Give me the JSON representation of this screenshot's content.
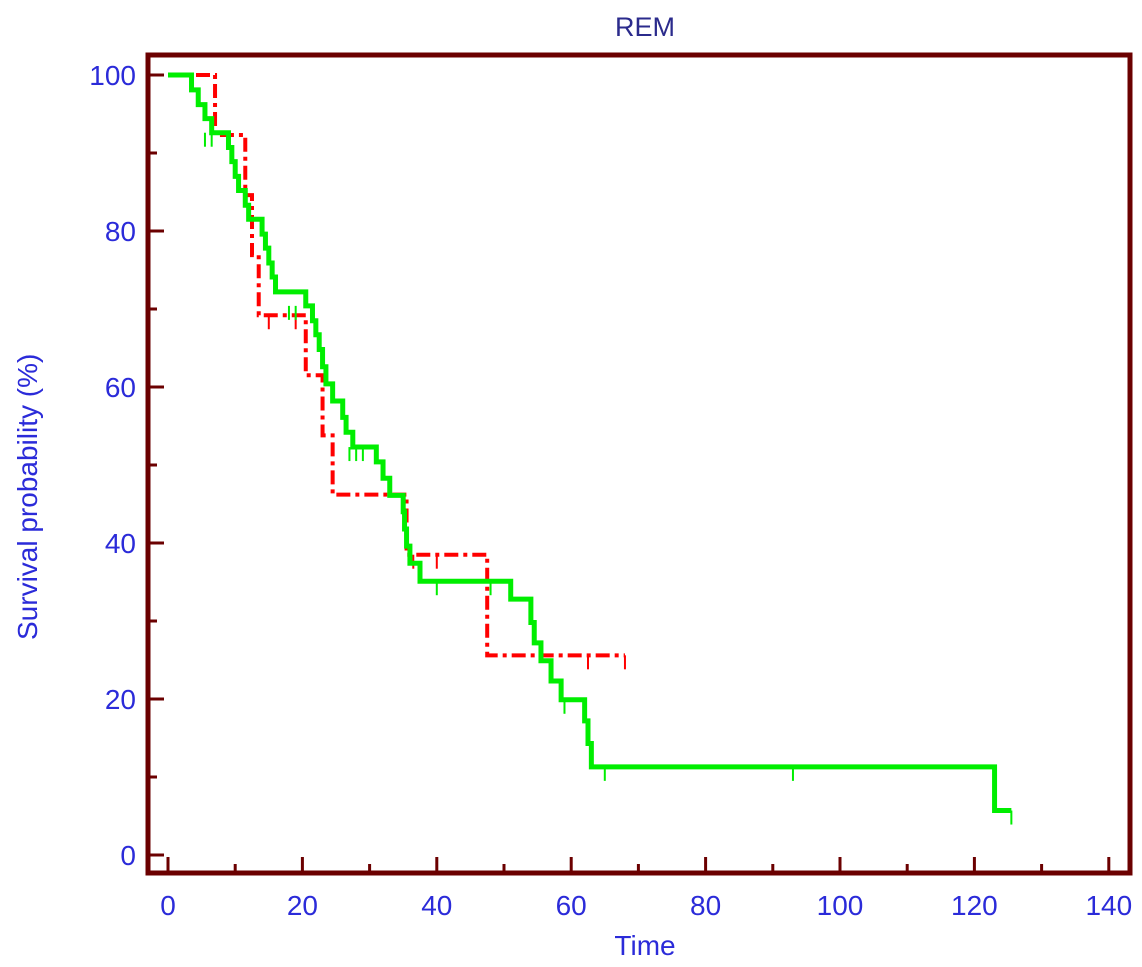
{
  "chart_data": {
    "type": "line",
    "title": "REM",
    "xlabel": "Time",
    "ylabel": "Survival probability (%)",
    "xlim": [
      0,
      140
    ],
    "ylim": [
      0,
      100
    ],
    "x_ticks": [
      "0",
      "20",
      "40",
      "60",
      "80",
      "100",
      "120",
      "140"
    ],
    "y_ticks": [
      "0",
      "20",
      "40",
      "60",
      "80",
      "100"
    ],
    "grid": false,
    "legend": "none",
    "colors": {
      "frame": "#6b0000",
      "axis_text": "#2b2bd9",
      "title_text": "#2b2b8c"
    },
    "series": [
      {
        "style": "dash-dot",
        "color": "#ff0000",
        "steps": [
          [
            0,
            100
          ],
          [
            7,
            92.3
          ],
          [
            11.5,
            84.6
          ],
          [
            12.5,
            76.9
          ],
          [
            13.5,
            69.2
          ],
          [
            20.5,
            61.5
          ],
          [
            23,
            53.8
          ],
          [
            24.5,
            46.2
          ],
          [
            35.5,
            38.5
          ],
          [
            47.5,
            25.6
          ],
          [
            68,
            25.6
          ]
        ],
        "censored": [
          [
            9,
            92.3
          ],
          [
            15,
            69.2
          ],
          [
            19,
            69.2
          ],
          [
            36.5,
            38.5
          ],
          [
            40,
            38.5
          ],
          [
            62.5,
            25.6
          ],
          [
            68,
            25.6
          ]
        ]
      },
      {
        "style": "solid",
        "color": "#00ee00",
        "steps": [
          [
            0,
            100
          ],
          [
            3.5,
            98.1
          ],
          [
            4.5,
            96.2
          ],
          [
            5.5,
            94.4
          ],
          [
            6.5,
            92.6
          ],
          [
            9,
            90.7
          ],
          [
            9.5,
            88.9
          ],
          [
            10,
            87
          ],
          [
            10.5,
            85.2
          ],
          [
            11.5,
            83.3
          ],
          [
            12,
            81.5
          ],
          [
            14,
            79.6
          ],
          [
            14.5,
            77.8
          ],
          [
            15,
            75.9
          ],
          [
            15.5,
            74.1
          ],
          [
            16,
            72.2
          ],
          [
            20.5,
            70.4
          ],
          [
            21.5,
            68.5
          ],
          [
            22,
            66.7
          ],
          [
            22.5,
            64.8
          ],
          [
            23,
            62.6
          ],
          [
            23.5,
            60.4
          ],
          [
            24.5,
            58.2
          ],
          [
            26,
            56.1
          ],
          [
            26.5,
            54.2
          ],
          [
            27.5,
            52.3
          ],
          [
            31,
            50.4
          ],
          [
            32,
            48.3
          ],
          [
            33,
            46.1
          ],
          [
            35,
            44
          ],
          [
            35.2,
            41.8
          ],
          [
            35.5,
            39.6
          ],
          [
            36,
            37.4
          ],
          [
            37.5,
            35.1
          ],
          [
            51,
            32.8
          ],
          [
            54,
            29.8
          ],
          [
            54.5,
            27.2
          ],
          [
            55.5,
            24.9
          ],
          [
            57,
            22.3
          ],
          [
            58.5,
            19.9
          ],
          [
            62,
            17.2
          ],
          [
            62.5,
            14.3
          ],
          [
            63,
            11.3
          ],
          [
            123,
            5.7
          ],
          [
            125.5,
            5.7
          ]
        ],
        "censored": [
          [
            5.5,
            92.6
          ],
          [
            6.5,
            92.6
          ],
          [
            18,
            70.4
          ],
          [
            19,
            70.4
          ],
          [
            27,
            52.3
          ],
          [
            28,
            52.3
          ],
          [
            29,
            52.3
          ],
          [
            40,
            35.1
          ],
          [
            48,
            35.1
          ],
          [
            59,
            19.9
          ],
          [
            65,
            11.3
          ],
          [
            93,
            11.3
          ],
          [
            125.5,
            5.7
          ]
        ]
      }
    ]
  }
}
